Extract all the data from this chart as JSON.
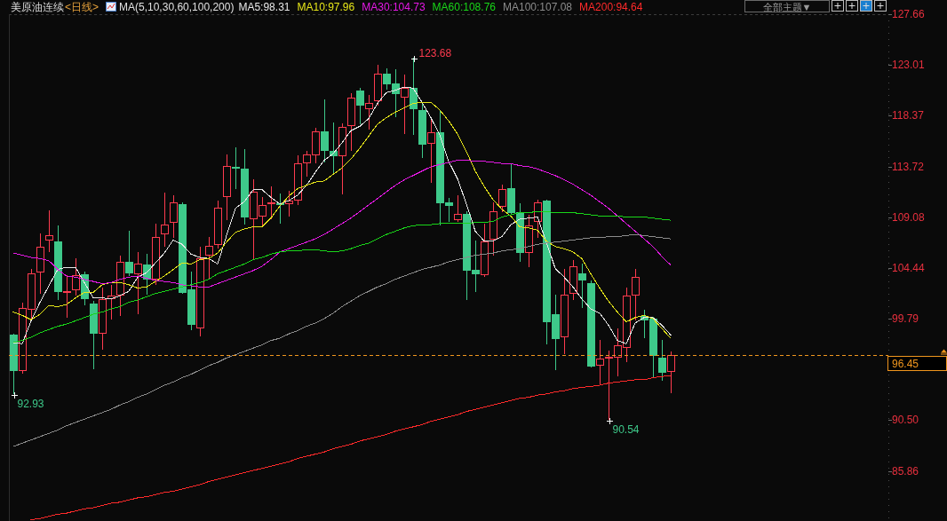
{
  "chart_data": {
    "type": "candlestick",
    "title": "美原油连续",
    "subtitle": "<日线>",
    "legend_title": "MA(5,10,30,60,100,200)",
    "legend": "top",
    "categories": [
      null,
      null,
      null,
      null,
      null,
      null,
      null,
      null,
      null,
      null,
      null,
      null,
      null,
      null,
      null,
      null,
      null,
      null,
      null,
      null,
      null,
      null,
      null,
      null,
      null,
      null,
      null,
      null,
      null,
      null,
      null,
      null,
      null,
      null,
      null,
      null,
      null,
      null,
      null,
      null,
      null,
      null,
      null,
      null,
      null,
      null,
      null,
      null,
      null,
      null,
      null,
      null,
      null,
      null,
      null,
      null,
      null,
      null,
      null,
      null,
      null,
      null,
      null,
      null,
      null,
      null,
      null,
      null,
      null,
      null,
      null,
      null,
      null,
      null,
      null
    ],
    "ohlc": [
      [
        98.36,
        98.43,
        92.93,
        95.03
      ],
      [
        95.03,
        101.25,
        94.78,
        100.76
      ],
      [
        100.63,
        104.36,
        99.71,
        103.91
      ],
      [
        104.04,
        107.61,
        102.06,
        106.34
      ],
      [
        106.91,
        109.72,
        105.93,
        107.4
      ],
      [
        106.85,
        108.31,
        101.47,
        102.25
      ],
      [
        102.2,
        103.77,
        99.85,
        102.3
      ],
      [
        102.36,
        105.31,
        101.88,
        103.82
      ],
      [
        103.85,
        104.09,
        100.98,
        101.6
      ],
      [
        101.17,
        101.39,
        95.19,
        98.43
      ],
      [
        98.43,
        102.63,
        96.95,
        101.6
      ],
      [
        101.6,
        102.9,
        99.71,
        101.88
      ],
      [
        101.92,
        105.53,
        100.06,
        104.96
      ],
      [
        104.98,
        107.88,
        103.69,
        103.95
      ],
      [
        103.87,
        105.88,
        100.2,
        104.85
      ],
      [
        104.72,
        105.72,
        102.01,
        103.36
      ],
      [
        103.34,
        108.5,
        102.9,
        107.28
      ],
      [
        107.48,
        111.34,
        106.39,
        108.37
      ],
      [
        108.61,
        111.07,
        107.2,
        110.4
      ],
      [
        110.26,
        110.4,
        102.06,
        102.14
      ],
      [
        102.47,
        104.09,
        98.76,
        99.22
      ],
      [
        98.9,
        106.34,
        98.14,
        105.33
      ],
      [
        105.53,
        107.28,
        103.36,
        106.42
      ],
      [
        106.53,
        110.59,
        106.2,
        109.99
      ],
      [
        110.89,
        114.81,
        108.78,
        113.73
      ],
      [
        113.65,
        115.46,
        111.67,
        113.51
      ],
      [
        113.51,
        115.35,
        108.42,
        109.04
      ],
      [
        108.91,
        112.53,
        105.12,
        111.45
      ],
      [
        109.18,
        110.93,
        108.15,
        110.16
      ],
      [
        110.37,
        111.88,
        108.91,
        110.48
      ],
      [
        110.32,
        111.29,
        108.5,
        110.16
      ],
      [
        110.26,
        111.53,
        109.18,
        110.59
      ],
      [
        110.59,
        114.73,
        110.2,
        114.05
      ],
      [
        114.05,
        115.19,
        112.83,
        114.86
      ],
      [
        114.78,
        117.24,
        114.05,
        116.97
      ],
      [
        116.97,
        119.9,
        114.1,
        115.13
      ],
      [
        115.19,
        117.79,
        113.02,
        114.67
      ],
      [
        114.67,
        117.7,
        111.21,
        117.38
      ],
      [
        117.43,
        120.41,
        115.13,
        120.06
      ],
      [
        120.65,
        120.89,
        117.57,
        119.3
      ],
      [
        118.97,
        120.27,
        117.1,
        119.57
      ],
      [
        119.73,
        123.06,
        119.33,
        122.25
      ],
      [
        122.25,
        122.7,
        120.73,
        121.22
      ],
      [
        121.3,
        122.66,
        118.24,
        120.35
      ],
      [
        120.06,
        122.17,
        116.67,
        120.95
      ],
      [
        120.89,
        123.68,
        116.62,
        118.97
      ],
      [
        118.92,
        119.51,
        114.51,
        115.72
      ],
      [
        115.8,
        117.97,
        112.23,
        116.89
      ],
      [
        116.89,
        118.84,
        108.29,
        110.37
      ],
      [
        110.45,
        110.85,
        108.64,
        110.12
      ],
      [
        108.78,
        111.07,
        108.64,
        109.42
      ],
      [
        109.37,
        109.64,
        101.47,
        104.17
      ],
      [
        104.25,
        106.93,
        102.23,
        103.85
      ],
      [
        103.77,
        108.5,
        103.58,
        106.83
      ],
      [
        107.01,
        110.4,
        105.53,
        109.59
      ],
      [
        110.04,
        112.07,
        109.53,
        111.62
      ],
      [
        111.7,
        113.91,
        109.4,
        109.45
      ],
      [
        109.53,
        110.32,
        104.98,
        105.8
      ],
      [
        105.85,
        109.31,
        104.52,
        108.29
      ],
      [
        108.69,
        110.67,
        107.2,
        110.48
      ],
      [
        110.59,
        110.67,
        97.41,
        99.44
      ],
      [
        100.2,
        101.96,
        95.06,
        97.95
      ],
      [
        98.06,
        104.36,
        96.52,
        101.96
      ],
      [
        102.04,
        105.12,
        101.47,
        104.58
      ],
      [
        103.95,
        104.85,
        100.79,
        103.3
      ],
      [
        103.04,
        103.3,
        95.3,
        95.43
      ],
      [
        95.46,
        97.87,
        93.7,
        96.14
      ],
      [
        96.25,
        96.87,
        90.54,
        96.3
      ],
      [
        96.19,
        98.9,
        94.49,
        97.33
      ],
      [
        97.09,
        102.63,
        95.79,
        101.88
      ],
      [
        101.88,
        104.36,
        99.65,
        103.58
      ],
      [
        100.03,
        100.58,
        98.0,
        99.65
      ],
      [
        99.77,
        99.98,
        94.43,
        96.38
      ],
      [
        96.24,
        97.87,
        94.13,
        94.84
      ],
      [
        94.94,
        96.79,
        93.0,
        96.45
      ]
    ],
    "colors": [
      "#3ec98a",
      "#ff3b4f",
      "#ff3b4f",
      "#ff3b4f",
      "#ff3b4f",
      "#3ec98a",
      "#ff3b4f",
      "#ff3b4f",
      "#3ec98a",
      "#3ec98a",
      "#ff3b4f",
      "#ff3b4f",
      "#ff3b4f",
      "#3ec98a",
      "#ff3b4f",
      "#3ec98a",
      "#ff3b4f",
      "#ff3b4f",
      "#ff3b4f",
      "#3ec98a",
      "#3ec98a",
      "#ff3b4f",
      "#ff3b4f",
      "#ff3b4f",
      "#ff3b4f",
      "#3ec98a",
      "#3ec98a",
      "#ff3b4f",
      "#ff3b4f",
      "#ff3b4f",
      "#3ec98a",
      "#ff3b4f",
      "#ff3b4f",
      "#ff3b4f",
      "#ff3b4f",
      "#3ec98a",
      "#3ec98a",
      "#ff3b4f",
      "#ff3b4f",
      "#3ec98a",
      "#ff3b4f",
      "#ff3b4f",
      "#3ec98a",
      "#3ec98a",
      "#ff3b4f",
      "#3ec98a",
      "#3ec98a",
      "#ff3b4f",
      "#3ec98a",
      "#3ec98a",
      "#ff3b4f",
      "#3ec98a",
      "#3ec98a",
      "#ff3b4f",
      "#ff3b4f",
      "#ff3b4f",
      "#3ec98a",
      "#3ec98a",
      "#ff3b4f",
      "#ff3b4f",
      "#3ec98a",
      "#3ec98a",
      "#ff3b4f",
      "#ff3b4f",
      "#3ec98a",
      "#3ec98a",
      "#ff3b4f",
      "#ff3b4f",
      "#ff3b4f",
      "#ff3b4f",
      "#ff3b4f",
      "#3ec98a",
      "#3ec98a",
      "#3ec98a",
      "#ff3b4f"
    ],
    "series": [
      {
        "name": "MA5:98.31",
        "type": "line",
        "color": "#e8e8e8",
        "values": [
          97.6,
          97.5,
          99.6,
          101.3,
          102.8,
          104.3,
          104.5,
          104.5,
          103.1,
          101.7,
          101.7,
          101.6,
          101.9,
          102.3,
          103.6,
          104.0,
          104.9,
          105.8,
          107.0,
          106.6,
          105.7,
          105.4,
          105.3,
          104.8,
          107.4,
          109.9,
          110.5,
          111.6,
          111.6,
          110.9,
          110.3,
          110.6,
          111.1,
          112.0,
          113.2,
          114.3,
          114.9,
          115.9,
          117.0,
          117.4,
          118.1,
          119.5,
          120.5,
          120.7,
          121.0,
          120.9,
          119.6,
          118.2,
          116.6,
          114.2,
          112.6,
          110.3,
          107.8,
          106.9,
          106.9,
          107.3,
          108.4,
          108.9,
          109.0,
          109.1,
          106.8,
          104.4,
          103.6,
          102.7,
          101.6,
          100.7,
          100.3,
          99.2,
          97.8,
          97.5,
          99.4,
          99.9,
          99.9,
          99.2,
          98.3
        ]
      },
      {
        "name": "MA10:97.96",
        "type": "line",
        "color": "#e6e619",
        "values": [
          100.4,
          100.1,
          99.7,
          100.2,
          101.0,
          100.9,
          101.1,
          101.7,
          102.2,
          102.2,
          102.9,
          103.1,
          103.1,
          102.9,
          102.6,
          102.7,
          103.2,
          103.7,
          104.3,
          104.9,
          104.8,
          105.2,
          105.3,
          105.8,
          106.8,
          107.7,
          108.0,
          108.2,
          108.2,
          109.0,
          110.1,
          111.0,
          111.7,
          112.0,
          112.3,
          112.4,
          113.0,
          113.6,
          114.4,
          115.4,
          116.5,
          117.6,
          118.2,
          118.7,
          119.1,
          119.5,
          119.6,
          119.6,
          118.9,
          117.9,
          116.7,
          115.1,
          113.3,
          111.9,
          110.7,
          109.8,
          109.2,
          108.2,
          108.1,
          107.9,
          106.9,
          106.4,
          106.2,
          105.9,
          105.3,
          103.9,
          102.6,
          101.4,
          100.4,
          99.5,
          99.9,
          100.1,
          99.8,
          98.9,
          98.0
        ]
      },
      {
        "name": "MA30:104.73",
        "type": "line",
        "color": "#e619e6",
        "values": [
          105.8,
          105.6,
          105.4,
          105.3,
          105.1,
          104.3,
          103.7,
          103.6,
          103.4,
          103.2,
          103.0,
          103.1,
          103.4,
          103.6,
          103.7,
          103.5,
          103.3,
          103.2,
          103.1,
          102.9,
          102.8,
          102.7,
          102.7,
          103.0,
          103.3,
          103.6,
          103.9,
          104.2,
          104.6,
          105.2,
          105.9,
          106.2,
          106.5,
          106.8,
          107.1,
          107.5,
          108.0,
          108.5,
          109.0,
          109.6,
          110.2,
          110.8,
          111.4,
          112.0,
          112.5,
          112.9,
          113.3,
          113.7,
          113.9,
          114.1,
          114.3,
          114.3,
          114.2,
          114.2,
          114.1,
          114.0,
          114.0,
          113.8,
          113.7,
          113.5,
          113.2,
          112.9,
          112.5,
          112.1,
          111.6,
          111.1,
          110.5,
          109.9,
          109.2,
          108.5,
          107.8,
          107.1,
          106.4,
          105.5,
          104.7
        ]
      },
      {
        "name": "MA60:108.76",
        "type": "line",
        "color": "#19d619",
        "values": [
          97.6,
          97.8,
          98.1,
          98.5,
          98.8,
          99.1,
          99.3,
          99.6,
          99.9,
          100.2,
          100.4,
          100.7,
          100.9,
          101.3,
          101.5,
          101.8,
          102.1,
          102.3,
          102.5,
          102.7,
          102.9,
          103.1,
          103.4,
          103.9,
          104.2,
          104.5,
          104.8,
          105.2,
          105.4,
          105.7,
          105.9,
          106.0,
          106.0,
          106.1,
          106.1,
          106.0,
          105.9,
          106.0,
          106.2,
          106.5,
          106.7,
          107.1,
          107.5,
          107.8,
          108.1,
          108.3,
          108.4,
          108.4,
          108.5,
          108.5,
          108.5,
          108.5,
          108.6,
          108.6,
          108.7,
          109.1,
          109.3,
          109.5,
          109.5,
          109.6,
          109.6,
          109.5,
          109.5,
          109.5,
          109.4,
          109.3,
          109.2,
          109.2,
          109.2,
          109.1,
          109.1,
          109.1,
          109.0,
          108.9,
          108.8
        ]
      },
      {
        "name": "MA100:107.08",
        "type": "line",
        "color": "#8c8c8c",
        "values": [
          88.1,
          88.4,
          88.7,
          89.0,
          89.3,
          89.6,
          90.0,
          90.3,
          90.6,
          90.9,
          91.2,
          91.5,
          91.9,
          92.2,
          92.6,
          92.9,
          93.3,
          93.7,
          94.0,
          94.4,
          94.7,
          95.1,
          95.5,
          95.8,
          96.2,
          96.5,
          96.8,
          97.1,
          97.4,
          97.8,
          98.0,
          98.4,
          98.7,
          99.1,
          99.4,
          99.8,
          100.3,
          100.9,
          101.4,
          101.9,
          102.3,
          102.7,
          103.0,
          103.4,
          103.7,
          104.0,
          104.3,
          104.5,
          104.7,
          105.0,
          105.2,
          105.4,
          105.6,
          105.7,
          105.8,
          106.0,
          106.1,
          106.2,
          106.4,
          106.6,
          106.7,
          106.8,
          106.9,
          107.0,
          107.1,
          107.2,
          107.2,
          107.3,
          107.3,
          107.4,
          107.5,
          107.4,
          107.3,
          107.2,
          107.1
        ]
      },
      {
        "name": "MA200:94.64",
        "type": "line",
        "color": "#ff2a2a",
        "values": [
          null,
          null,
          81.4,
          81.5,
          81.7,
          81.9,
          82.0,
          82.2,
          82.4,
          82.5,
          82.7,
          82.9,
          83.0,
          83.2,
          83.4,
          83.5,
          83.7,
          83.9,
          84.0,
          84.2,
          84.4,
          84.6,
          84.9,
          85.1,
          85.3,
          85.5,
          85.7,
          85.9,
          86.1,
          86.3,
          86.5,
          86.7,
          87.0,
          87.2,
          87.4,
          87.6,
          87.9,
          88.1,
          88.3,
          88.6,
          88.8,
          89.0,
          89.2,
          89.5,
          89.7,
          89.9,
          90.1,
          90.4,
          90.6,
          90.8,
          91.0,
          91.3,
          91.5,
          91.7,
          91.9,
          92.1,
          92.3,
          92.5,
          92.6,
          92.8,
          92.9,
          93.1,
          93.2,
          93.4,
          93.5,
          93.6,
          93.7,
          93.9,
          94.0,
          94.1,
          94.2,
          94.2,
          94.4,
          94.5,
          94.6
        ]
      },
      {
        "type": "scatter",
        "color": "#ffffff",
        "marker": "cross",
        "values": [
          92.93,
          null,
          null,
          null,
          null,
          null,
          null,
          null,
          null,
          null,
          null,
          null,
          null,
          null,
          null,
          null,
          null,
          null,
          null,
          null,
          null,
          null,
          null,
          null,
          null,
          null,
          null,
          null,
          null,
          null,
          null,
          null,
          null,
          null,
          null,
          null,
          null,
          null,
          null,
          null,
          null,
          null,
          null,
          null,
          null,
          123.68,
          null,
          null,
          null,
          null,
          null,
          null,
          null,
          null,
          null,
          null,
          null,
          null,
          null,
          null,
          null,
          null,
          null,
          null,
          null,
          null,
          null,
          90.54,
          null,
          null,
          null,
          null,
          null,
          null,
          null
        ],
        "value_labels": [
          "92.93",
          null,
          null,
          null,
          null,
          null,
          null,
          null,
          null,
          null,
          null,
          null,
          null,
          null,
          null,
          null,
          null,
          null,
          null,
          null,
          null,
          null,
          null,
          null,
          null,
          null,
          null,
          null,
          null,
          null,
          null,
          null,
          null,
          null,
          null,
          null,
          null,
          null,
          null,
          null,
          null,
          null,
          null,
          null,
          null,
          "123.68",
          null,
          null,
          null,
          null,
          null,
          null,
          null,
          null,
          null,
          null,
          null,
          null,
          null,
          null,
          null,
          null,
          null,
          null,
          null,
          null,
          null,
          "90.54",
          null,
          null,
          null,
          null,
          null,
          null,
          null
        ]
      }
    ],
    "ylim": [
      81.28,
      127.66
    ],
    "yticks": [
      127.66,
      123.01,
      118.37,
      113.72,
      109.08,
      104.44,
      99.79,
      {
        "value": 90.5,
        "label": "90.50"
      },
      85.86
    ],
    "ref_lines": [
      {
        "axis": "y",
        "value": 96.45,
        "label": "96.45",
        "color": "#f0961e",
        "line_style": "dashed"
      }
    ],
    "annotations": [
      "全部主题▼"
    ]
  }
}
